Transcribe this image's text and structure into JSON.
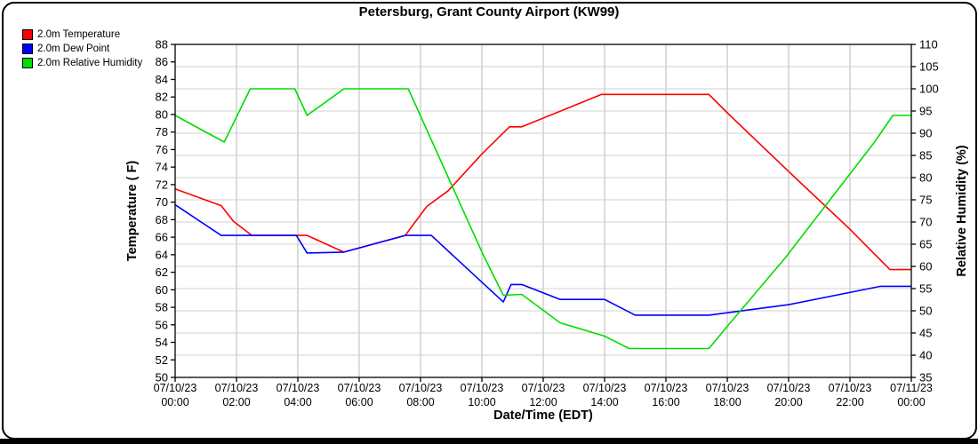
{
  "window": {
    "title": "Petersburg, Grant County Airport (KW99)"
  },
  "chart_data": {
    "type": "line",
    "title": "Petersburg, Grant County Airport (KW99)",
    "legend_position": "top-left",
    "x_axis": {
      "label": "Date/Time (EDT)",
      "range_hours": [
        0,
        24
      ],
      "tick_interval_hours": 2,
      "tick_labels": [
        [
          "07/10/23",
          "00:00"
        ],
        [
          "07/10/23",
          "02:00"
        ],
        [
          "07/10/23",
          "04:00"
        ],
        [
          "07/10/23",
          "06:00"
        ],
        [
          "07/10/23",
          "08:00"
        ],
        [
          "07/10/23",
          "10:00"
        ],
        [
          "07/10/23",
          "12:00"
        ],
        [
          "07/10/23",
          "14:00"
        ],
        [
          "07/10/23",
          "16:00"
        ],
        [
          "07/10/23",
          "18:00"
        ],
        [
          "07/10/23",
          "20:00"
        ],
        [
          "07/10/23",
          "22:00"
        ],
        [
          "07/11/23",
          "00:00"
        ]
      ]
    },
    "y_left": {
      "label": "Temperature ( F)",
      "min": 50,
      "max": 88,
      "tick_step": 2,
      "ticks": [
        50,
        52,
        54,
        56,
        58,
        60,
        62,
        64,
        66,
        68,
        70,
        72,
        74,
        76,
        78,
        80,
        82,
        84,
        86,
        88
      ]
    },
    "y_right": {
      "label": "Relative Humidity (%)",
      "min": 35,
      "max": 110,
      "tick_step": 5,
      "ticks": [
        35,
        40,
        45,
        50,
        55,
        60,
        65,
        70,
        75,
        80,
        85,
        90,
        95,
        100,
        105,
        110
      ]
    },
    "grid": {
      "vertical_color": "#b8b8b8",
      "horizontal_color": "#d2d2d2",
      "axis_color": "#000000"
    },
    "series": [
      {
        "name": "2.0m Temperature",
        "axis": "left",
        "unit": "F",
        "color": "#ff0000",
        "points": [
          [
            0,
            71.5
          ],
          [
            1.5,
            69.6
          ],
          [
            1.9,
            67.8
          ],
          [
            2.5,
            66.2
          ],
          [
            4.3,
            66.2
          ],
          [
            5.5,
            64.3
          ],
          [
            7.5,
            66.2
          ],
          [
            8.2,
            69.5
          ],
          [
            8.9,
            71.3
          ],
          [
            10,
            75.5
          ],
          [
            10.9,
            78.6
          ],
          [
            11.3,
            78.6
          ],
          [
            13.9,
            82.3
          ],
          [
            17.4,
            82.3
          ],
          [
            18,
            80.2
          ],
          [
            20,
            73.5
          ],
          [
            22,
            66.9
          ],
          [
            23.3,
            62.3
          ],
          [
            24,
            62.3
          ]
        ]
      },
      {
        "name": "2.0m Dew Point",
        "axis": "left",
        "unit": "F",
        "color": "#0000ff",
        "points": [
          [
            0,
            69.7
          ],
          [
            1.5,
            66.2
          ],
          [
            3.95,
            66.2
          ],
          [
            4.3,
            64.2
          ],
          [
            5.5,
            64.3
          ],
          [
            7.5,
            66.2
          ],
          [
            8.35,
            66.2
          ],
          [
            10.7,
            58.6
          ],
          [
            10.95,
            60.6
          ],
          [
            11.3,
            60.6
          ],
          [
            12.55,
            58.9
          ],
          [
            14,
            58.9
          ],
          [
            15,
            57.1
          ],
          [
            17.4,
            57.1
          ],
          [
            20,
            58.3
          ],
          [
            23,
            60.4
          ],
          [
            24,
            60.4
          ]
        ]
      },
      {
        "name": "2.0m Relative Humidity",
        "axis": "right",
        "unit": "%",
        "color": "#00dd00",
        "points": [
          [
            0,
            94
          ],
          [
            1.6,
            88
          ],
          [
            2.45,
            100
          ],
          [
            3.9,
            100
          ],
          [
            4.3,
            94
          ],
          [
            5.5,
            100
          ],
          [
            7.6,
            100
          ],
          [
            10.05,
            62.5
          ],
          [
            10.7,
            53.5
          ],
          [
            11.3,
            53.7
          ],
          [
            12.55,
            47.3
          ],
          [
            14,
            44.3
          ],
          [
            14.8,
            41.5
          ],
          [
            17.4,
            41.5
          ],
          [
            18,
            46.5
          ],
          [
            19.9,
            62
          ],
          [
            22.8,
            88
          ],
          [
            23.4,
            94
          ],
          [
            24,
            94
          ]
        ]
      }
    ]
  }
}
